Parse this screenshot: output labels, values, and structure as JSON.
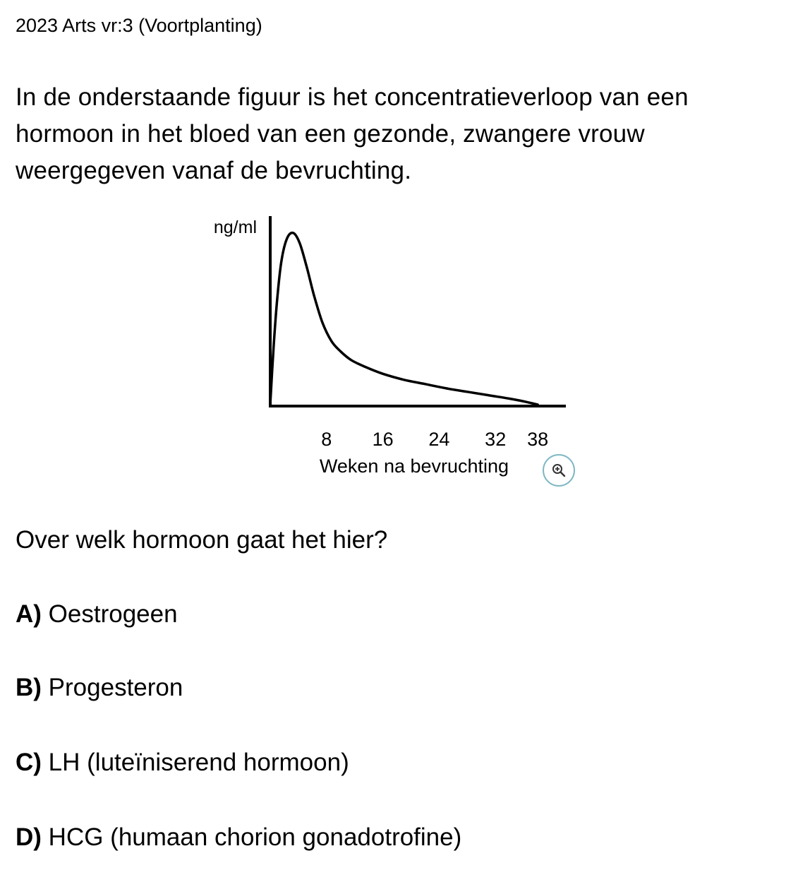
{
  "header": {
    "title": "2023 Arts vr:3 (Voortplanting)"
  },
  "intro": {
    "lines": [
      "In de onderstaande figuur is het concentratieverloop van een",
      "hormoon in het bloed van een gezonde, zwangere vrouw",
      "weergegeven vanaf de bevruchting."
    ]
  },
  "chart_data": {
    "type": "line",
    "title": "",
    "ylabel": "ng/ml",
    "xlabel": "Weken na bevruchting",
    "x_ticks": [
      8,
      16,
      24,
      32,
      38
    ],
    "xlim": [
      0,
      41
    ],
    "ylim": [
      0,
      100
    ],
    "grid": false,
    "legend": "none",
    "series": [
      {
        "x": [
          0,
          0.5,
          1,
          1.6,
          2.4,
          3.3,
          4.2,
          5.2,
          6.2,
          7.4,
          8.7,
          10,
          11.5,
          13.5,
          16,
          19,
          22,
          25,
          28,
          31,
          34,
          36.5,
          38
        ],
        "y": [
          0,
          35,
          62,
          84,
          97,
          100,
          94,
          80,
          64,
          48,
          37,
          31,
          26,
          22,
          18,
          14.5,
          12,
          9.5,
          7.5,
          5.5,
          3.5,
          1.5,
          0
        ]
      }
    ],
    "line_color": "#000000"
  },
  "zoom": {
    "icon": "zoom-in-icon",
    "color": "#7fb8c4"
  },
  "question": {
    "text": "Over welk hormoon gaat het hier?"
  },
  "options": [
    {
      "letter": "A)",
      "text": "Oestrogeen"
    },
    {
      "letter": "B)",
      "text": "Progesteron"
    },
    {
      "letter": "C)",
      "text": "LH (luteïniserend hormoon)"
    },
    {
      "letter": "D)",
      "text": "HCG (humaan chorion gonadotrofine)"
    }
  ]
}
